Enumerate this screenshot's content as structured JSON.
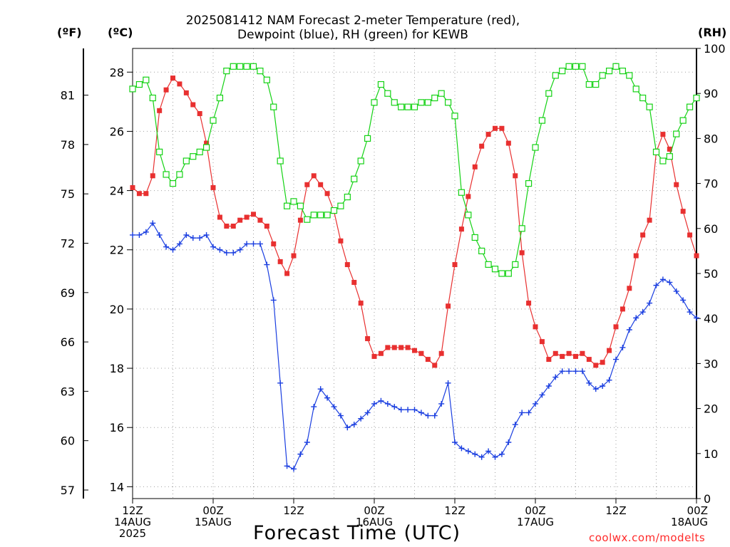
{
  "title_line1": "2025081412 NAM Forecast 2-meter Temperature (red),",
  "title_line2": "Dewpoint (blue), RH (green) for KEWB",
  "unit_f": "(ºF)",
  "unit_c": "(ºC)",
  "unit_rh": "(RH)",
  "xlabel": "Forecast Time (UTC)",
  "credit": "coolwx.com/modelts",
  "colors": {
    "temperature": "#e83030",
    "dewpoint": "#1a3ee0",
    "rh": "#14d214",
    "grid": "#a0a0a0"
  },
  "chart_data": {
    "type": "line",
    "x": [
      0,
      1,
      2,
      3,
      4,
      5,
      6,
      7,
      8,
      9,
      10,
      11,
      12,
      13,
      14,
      15,
      16,
      17,
      18,
      19,
      20,
      21,
      22,
      23,
      24,
      25,
      26,
      27,
      28,
      29,
      30,
      31,
      32,
      33,
      34,
      35,
      36,
      37,
      38,
      39,
      40,
      41,
      42,
      43,
      44,
      45,
      46,
      47,
      48,
      49,
      50,
      51,
      52,
      53,
      54,
      55,
      56,
      57,
      58,
      59,
      60,
      61,
      62,
      63,
      64,
      65,
      66,
      67,
      68,
      69,
      70,
      71,
      72,
      73,
      74,
      75,
      76,
      77,
      78,
      79,
      80,
      81,
      82,
      83,
      84
    ],
    "xlabel": "Forecast Time (UTC)",
    "xlim": [
      0,
      84
    ],
    "x_ticks": [
      {
        "x": 0,
        "lines": [
          "12Z",
          "14AUG",
          "2025"
        ]
      },
      {
        "x": 12,
        "lines": [
          "00Z",
          "15AUG"
        ]
      },
      {
        "x": 24,
        "lines": [
          "12Z"
        ]
      },
      {
        "x": 36,
        "lines": [
          "00Z",
          "16AUG"
        ]
      },
      {
        "x": 48,
        "lines": [
          "12Z"
        ]
      },
      {
        "x": 60,
        "lines": [
          "00Z",
          "17AUG"
        ]
      },
      {
        "x": 72,
        "lines": [
          "12Z"
        ]
      },
      {
        "x": 84,
        "lines": [
          "00Z",
          "18AUG"
        ]
      }
    ],
    "y_celsius": {
      "ylim": [
        13.6,
        28.8
      ],
      "ticks": [
        "14",
        "16",
        "18",
        "20",
        "22",
        "24",
        "26",
        "28"
      ]
    },
    "y_fahrenheit": {
      "ticks": [
        "57",
        "60",
        "63",
        "66",
        "69",
        "72",
        "75",
        "78",
        "81"
      ]
    },
    "y_rh": {
      "ylim": [
        0,
        100
      ],
      "ticks": [
        "0",
        "10",
        "20",
        "30",
        "40",
        "50",
        "60",
        "70",
        "80",
        "90",
        "100"
      ]
    },
    "grid": true,
    "series": [
      {
        "name": "Temperature",
        "axis": "celsius",
        "marker": "filled-square",
        "values": [
          24.1,
          23.9,
          23.9,
          24.5,
          26.7,
          27.4,
          27.8,
          27.6,
          27.3,
          26.9,
          26.6,
          25.6,
          24.1,
          23.1,
          22.8,
          22.8,
          23.0,
          23.1,
          23.2,
          23.0,
          22.8,
          22.2,
          21.6,
          21.2,
          21.8,
          23.0,
          24.2,
          24.5,
          24.2,
          23.9,
          23.3,
          22.3,
          21.5,
          20.9,
          20.2,
          19.0,
          18.4,
          18.5,
          18.7,
          18.7,
          18.7,
          18.7,
          18.6,
          18.5,
          18.3,
          18.1,
          18.5,
          20.1,
          21.5,
          22.7,
          23.8,
          24.8,
          25.5,
          25.9,
          26.1,
          26.1,
          25.6,
          24.5,
          21.9,
          20.2,
          19.4,
          18.9,
          18.3,
          18.5,
          18.4,
          18.5,
          18.4,
          18.5,
          18.3,
          18.1,
          18.2,
          18.6,
          19.4,
          20.0,
          20.7,
          21.8,
          22.5,
          23.0,
          25.3,
          25.9,
          25.4,
          24.2,
          23.3,
          22.5,
          21.8
        ]
      },
      {
        "name": "Dewpoint",
        "axis": "celsius",
        "marker": "plus",
        "values": [
          22.5,
          22.5,
          22.6,
          22.9,
          22.5,
          22.1,
          22.0,
          22.2,
          22.5,
          22.4,
          22.4,
          22.5,
          22.1,
          22.0,
          21.9,
          21.9,
          22.0,
          22.2,
          22.2,
          22.2,
          21.5,
          20.3,
          17.5,
          14.7,
          14.6,
          15.1,
          15.5,
          16.7,
          17.3,
          17.0,
          16.7,
          16.4,
          16.0,
          16.1,
          16.3,
          16.5,
          16.8,
          16.9,
          16.8,
          16.7,
          16.6,
          16.6,
          16.6,
          16.5,
          16.4,
          16.4,
          16.8,
          17.5,
          15.5,
          15.3,
          15.2,
          15.1,
          15.0,
          15.2,
          15.0,
          15.1,
          15.5,
          16.1,
          16.5,
          16.5,
          16.8,
          17.1,
          17.4,
          17.7,
          17.9,
          17.9,
          17.9,
          17.9,
          17.5,
          17.3,
          17.4,
          17.6,
          18.3,
          18.7,
          19.3,
          19.7,
          19.9,
          20.2,
          20.8,
          21.0,
          20.9,
          20.6,
          20.3,
          19.9,
          19.7
        ]
      },
      {
        "name": "RH",
        "axis": "rh",
        "marker": "open-square",
        "values": [
          91,
          92,
          93,
          89,
          77,
          72,
          70,
          72,
          75,
          76,
          77,
          78,
          84,
          89,
          95,
          96,
          96,
          96,
          96,
          95,
          93,
          87,
          75,
          65,
          66,
          65,
          62,
          63,
          63,
          63,
          64,
          65,
          67,
          71,
          75,
          80,
          88,
          92,
          90,
          88,
          87,
          87,
          87,
          88,
          88,
          89,
          90,
          88,
          85,
          68,
          63,
          58,
          55,
          52,
          51,
          50,
          50,
          52,
          60,
          70,
          78,
          84,
          90,
          94,
          95,
          96,
          96,
          96,
          92,
          92,
          94,
          95,
          96,
          95,
          94,
          91,
          89,
          87,
          77,
          75,
          76,
          81,
          84,
          87,
          89
        ]
      }
    ]
  }
}
